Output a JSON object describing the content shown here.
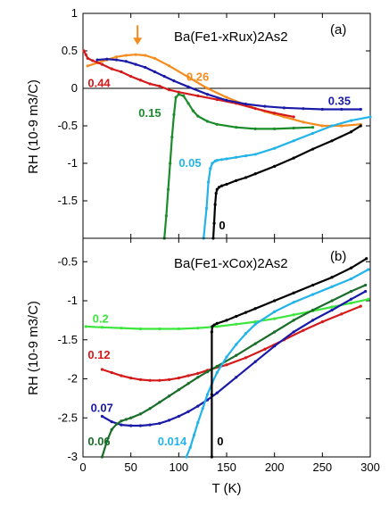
{
  "figure": {
    "xlabel": "T (K)"
  },
  "chart_data": [
    {
      "type": "line",
      "title": "Ba(Fe1-xRux)2As2",
      "panel_label": "(a)",
      "xlabel": "T (K)",
      "ylabel": "RH (10-9 m3/C)",
      "xlim": [
        0,
        300
      ],
      "ylim": [
        -2,
        1
      ],
      "x_ticks": [
        0,
        50,
        100,
        150,
        200,
        250,
        300
      ],
      "y_ticks": [
        1,
        0.5,
        0,
        -0.5,
        -1,
        -1.5
      ],
      "y_tick_labels": [
        "1",
        "0.5",
        "0",
        "-0.5",
        "-1",
        "-1.5"
      ],
      "zero_line": true,
      "arrow": {
        "x": 57,
        "y": 0.58,
        "color": "#f48c1e"
      },
      "series": [
        {
          "name": "0.26",
          "color": "#f48c1e",
          "label_x": 108,
          "label_y": 0.1,
          "x": [
            5,
            15,
            25,
            35,
            45,
            55,
            65,
            75,
            90,
            110,
            130,
            150,
            170,
            190,
            210,
            230,
            250,
            270,
            290
          ],
          "y": [
            0.3,
            0.34,
            0.38,
            0.42,
            0.44,
            0.45,
            0.44,
            0.4,
            0.3,
            0.15,
            0.0,
            -0.12,
            -0.22,
            -0.31,
            -0.38,
            -0.45,
            -0.5,
            -0.5,
            -0.48
          ]
        },
        {
          "name": "0.44",
          "color": "#d41a1a",
          "label_x": 5,
          "label_y": 0.02,
          "x": [
            1,
            3,
            5,
            10,
            20,
            30,
            40,
            50,
            60,
            70,
            80,
            90,
            100,
            120,
            140,
            160,
            180,
            200,
            220
          ],
          "y": [
            0.5,
            0.45,
            0.4,
            0.37,
            0.32,
            0.26,
            0.22,
            0.16,
            0.11,
            0.06,
            0.03,
            -0.02,
            -0.05,
            -0.1,
            -0.15,
            -0.2,
            -0.27,
            -0.33,
            -0.38
          ]
        },
        {
          "name": "0.35",
          "color": "#1a1aa8",
          "label_x": 256,
          "label_y": -0.22,
          "x": [
            15,
            25,
            35,
            45,
            55,
            65,
            75,
            85,
            95,
            110,
            130,
            150,
            170,
            190,
            210,
            230,
            250,
            270,
            290
          ],
          "y": [
            0.38,
            0.39,
            0.38,
            0.36,
            0.32,
            0.28,
            0.22,
            0.16,
            0.1,
            0.02,
            -0.08,
            -0.16,
            -0.21,
            -0.24,
            -0.26,
            -0.27,
            -0.28,
            -0.28,
            -0.28
          ]
        },
        {
          "name": "0.15",
          "color": "#1a8c2a",
          "label_x": 58,
          "label_y": -0.38,
          "x": [
            85,
            87,
            89,
            91,
            93,
            95,
            97,
            100,
            105,
            110,
            115,
            120,
            130,
            140,
            160,
            180,
            200,
            220,
            240
          ],
          "y": [
            -2.0,
            -1.7,
            -1.35,
            -1.0,
            -0.65,
            -0.35,
            -0.12,
            -0.08,
            -0.1,
            -0.2,
            -0.3,
            -0.37,
            -0.44,
            -0.48,
            -0.52,
            -0.54,
            -0.54,
            -0.53,
            -0.52
          ]
        },
        {
          "name": "0.05",
          "color": "#22b4e8",
          "label_x": 100,
          "label_y": -1.05,
          "x": [
            126,
            129,
            131,
            133,
            135,
            138,
            140,
            145,
            150,
            160,
            170,
            180,
            200,
            220,
            240,
            260,
            280,
            300
          ],
          "y": [
            -2.0,
            -1.6,
            -1.25,
            -1.07,
            -1.0,
            -0.97,
            -0.96,
            -0.95,
            -0.94,
            -0.92,
            -0.9,
            -0.88,
            -0.8,
            -0.7,
            -0.6,
            -0.5,
            -0.43,
            -0.38
          ]
        },
        {
          "name": "0",
          "color": "#000000",
          "label_x": 142,
          "label_y": -1.88,
          "x": [
            136,
            137,
            138,
            139,
            140,
            142,
            145,
            150,
            160,
            170,
            180,
            200,
            220,
            240,
            260,
            280,
            290
          ],
          "y": [
            -2.0,
            -1.8,
            -1.55,
            -1.4,
            -1.35,
            -1.32,
            -1.3,
            -1.28,
            -1.23,
            -1.19,
            -1.14,
            -1.04,
            -0.93,
            -0.81,
            -0.7,
            -0.58,
            -0.5
          ]
        }
      ]
    },
    {
      "type": "line",
      "title": "Ba(Fe1-xCox)2As2",
      "panel_label": "(b)",
      "xlabel": "T (K)",
      "ylabel": "RH (10-9 m3/C)",
      "xlim": [
        0,
        300
      ],
      "ylim": [
        -3,
        -0.2
      ],
      "x_ticks": [
        0,
        50,
        100,
        150,
        200,
        250,
        300
      ],
      "y_ticks": [
        -0.5,
        -1,
        -1.5,
        -2,
        -2.5,
        -3
      ],
      "y_tick_labels": [
        "-0.5",
        "-1",
        "-1.5",
        "-2",
        "-2.5",
        "-3"
      ],
      "series": [
        {
          "name": "0.2",
          "color": "#3ce63c",
          "label_x": 10,
          "label_y": -1.28,
          "x": [
            3,
            20,
            40,
            60,
            80,
            100,
            120,
            140,
            160,
            180,
            200,
            220,
            240,
            260,
            280,
            298
          ],
          "y": [
            -1.33,
            -1.34,
            -1.35,
            -1.36,
            -1.36,
            -1.36,
            -1.35,
            -1.33,
            -1.3,
            -1.27,
            -1.23,
            -1.18,
            -1.13,
            -1.08,
            -1.03,
            -0.98
          ]
        },
        {
          "name": "0.12",
          "color": "#d41a1a",
          "label_x": 5,
          "label_y": -1.74,
          "x": [
            20,
            30,
            40,
            50,
            60,
            70,
            80,
            90,
            100,
            110,
            120,
            130,
            150,
            170,
            190,
            210,
            230,
            250,
            270,
            290
          ],
          "y": [
            -1.88,
            -1.92,
            -1.96,
            -1.99,
            -2.01,
            -2.02,
            -2.02,
            -2.01,
            -1.99,
            -1.96,
            -1.93,
            -1.89,
            -1.82,
            -1.73,
            -1.62,
            -1.5,
            -1.38,
            -1.27,
            -1.17,
            -1.07
          ]
        },
        {
          "name": "0.07",
          "color": "#1a1aa8",
          "label_x": 8,
          "label_y": -2.42,
          "x": [
            20,
            30,
            40,
            50,
            60,
            70,
            80,
            90,
            100,
            110,
            120,
            130,
            140,
            160,
            180,
            200,
            220,
            240,
            260,
            280,
            295
          ],
          "y": [
            -2.48,
            -2.55,
            -2.59,
            -2.6,
            -2.6,
            -2.59,
            -2.57,
            -2.53,
            -2.48,
            -2.42,
            -2.35,
            -2.27,
            -2.18,
            -1.98,
            -1.78,
            -1.58,
            -1.4,
            -1.25,
            -1.12,
            -0.98,
            -0.88
          ]
        },
        {
          "name": "0.06",
          "color": "#1a6e2a",
          "label_x": 5,
          "label_y": -2.85,
          "x": [
            20,
            25,
            30,
            35,
            40,
            45,
            50,
            60,
            70,
            80,
            90,
            100,
            110,
            120,
            130,
            140,
            160,
            180,
            200,
            220,
            240,
            260,
            280,
            295
          ],
          "y": [
            -3.0,
            -2.8,
            -2.65,
            -2.58,
            -2.54,
            -2.52,
            -2.5,
            -2.45,
            -2.38,
            -2.3,
            -2.22,
            -2.14,
            -2.06,
            -1.98,
            -1.91,
            -1.84,
            -1.7,
            -1.55,
            -1.4,
            -1.25,
            -1.12,
            -1.0,
            -0.88,
            -0.8
          ]
        },
        {
          "name": "0.014",
          "color": "#22b4e8",
          "label_x": 78,
          "label_y": -2.85,
          "x": [
            108,
            112,
            116,
            120,
            125,
            130,
            135,
            140,
            150,
            160,
            170,
            180,
            200,
            220,
            240,
            260,
            280,
            298
          ],
          "y": [
            -3.0,
            -2.88,
            -2.72,
            -2.56,
            -2.38,
            -2.2,
            -2.05,
            -1.92,
            -1.72,
            -1.56,
            -1.42,
            -1.3,
            -1.14,
            -1.02,
            -0.92,
            -0.82,
            -0.72,
            -0.6
          ]
        },
        {
          "name": "0",
          "color": "#000000",
          "label_x": 140,
          "label_y": -2.85,
          "x": [
            134.5,
            134.5,
            134.5,
            135,
            137,
            140,
            150,
            160,
            170,
            180,
            200,
            220,
            240,
            260,
            280,
            296
          ],
          "y": [
            -3.0,
            -2.2,
            -1.4,
            -1.33,
            -1.31,
            -1.29,
            -1.25,
            -1.2,
            -1.15,
            -1.1,
            -1.0,
            -0.9,
            -0.8,
            -0.7,
            -0.58,
            -0.46
          ]
        }
      ]
    }
  ]
}
